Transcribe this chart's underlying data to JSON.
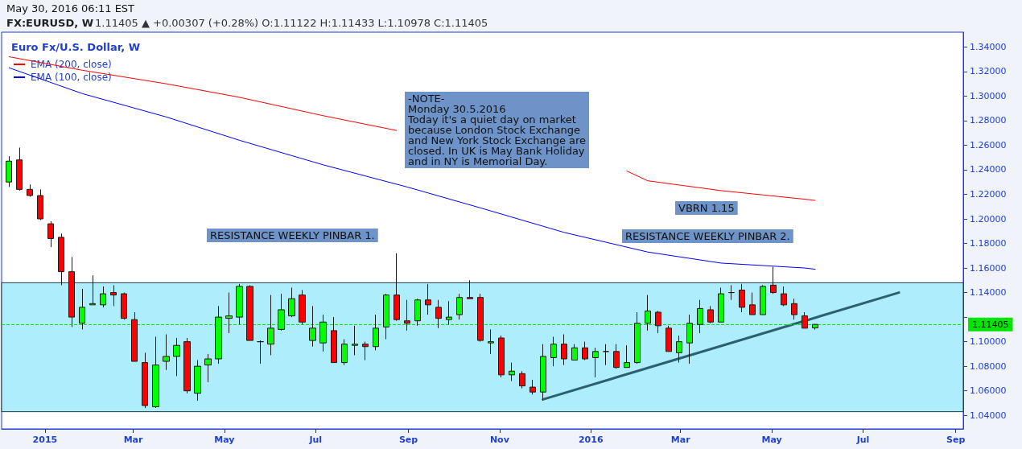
{
  "chart_data": {
    "type": "candlestick",
    "title": "FX:EURUSD, W",
    "subtitle": "1.11405 ▲ +0.00307 (+0.28%) O:1.11122 H:1.11433 L:1.10978 C:1.11405",
    "legend_title": "Euro Fx/U.S. Dollar, W",
    "annotations": [
      "May 30, 2016 06:11 EST",
      "-NOTE-\nMonday 30.5.2016\nToday it's a quiet day on market\nbecause London Stock Exchange\nand New York Stock Exchange are\nclosed. In UK is May Bank Holiday\nand in NY is Memorial Day.",
      "VBRN 1.15",
      "RESISTANCE WEEKLY PINBAR 1.",
      "RESISTANCE WEEKLY PINBAR 2."
    ],
    "x": [
      "2014-12-08",
      "2014-12-15",
      "2014-12-22",
      "2014-12-29",
      "2015-01-05",
      "2015-01-12",
      "2015-01-19",
      "2015-01-26",
      "2015-02-02",
      "2015-02-09",
      "2015-02-16",
      "2015-02-23",
      "2015-03-02",
      "2015-03-09",
      "2015-03-16",
      "2015-03-23",
      "2015-03-30",
      "2015-04-06",
      "2015-04-13",
      "2015-04-20",
      "2015-04-27",
      "2015-05-04",
      "2015-05-11",
      "2015-05-18",
      "2015-05-25",
      "2015-06-01",
      "2015-06-08",
      "2015-06-15",
      "2015-06-22",
      "2015-06-29",
      "2015-07-06",
      "2015-07-13",
      "2015-07-20",
      "2015-07-27",
      "2015-08-03",
      "2015-08-10",
      "2015-08-17",
      "2015-08-24",
      "2015-08-31",
      "2015-09-07",
      "2015-09-14",
      "2015-09-21",
      "2015-09-28",
      "2015-10-05",
      "2015-10-12",
      "2015-10-19",
      "2015-10-26",
      "2015-11-02",
      "2015-11-09",
      "2015-11-16",
      "2015-11-23",
      "2015-11-30",
      "2015-12-07",
      "2015-12-14",
      "2015-12-21",
      "2015-12-28",
      "2016-01-04",
      "2016-01-11",
      "2016-01-18",
      "2016-01-25",
      "2016-02-01",
      "2016-02-08",
      "2016-02-15",
      "2016-02-22",
      "2016-02-29",
      "2016-03-07",
      "2016-03-14",
      "2016-03-21",
      "2016-03-28",
      "2016-04-04",
      "2016-04-11",
      "2016-04-18",
      "2016-04-25",
      "2016-05-02",
      "2016-05-09",
      "2016-05-16",
      "2016-05-23",
      "2016-05-30"
    ],
    "ohlc": [
      [
        1.23,
        1.251,
        1.226,
        1.247
      ],
      [
        1.248,
        1.258,
        1.223,
        1.224
      ],
      [
        1.224,
        1.228,
        1.218,
        1.219
      ],
      [
        1.219,
        1.224,
        1.199,
        1.2
      ],
      [
        1.196,
        1.198,
        1.177,
        1.184
      ],
      [
        1.185,
        1.188,
        1.146,
        1.157
      ],
      [
        1.157,
        1.169,
        1.112,
        1.12
      ],
      [
        1.115,
        1.143,
        1.11,
        1.128
      ],
      [
        1.13,
        1.154,
        1.13,
        1.131
      ],
      [
        1.13,
        1.145,
        1.128,
        1.139
      ],
      [
        1.14,
        1.146,
        1.129,
        1.138
      ],
      [
        1.139,
        1.14,
        1.118,
        1.119
      ],
      [
        1.118,
        1.124,
        1.084,
        1.084
      ],
      [
        1.083,
        1.091,
        1.046,
        1.048
      ],
      [
        1.047,
        1.104,
        1.046,
        1.081
      ],
      [
        1.084,
        1.106,
        1.077,
        1.088
      ],
      [
        1.088,
        1.103,
        1.072,
        1.097
      ],
      [
        1.1,
        1.103,
        1.058,
        1.06
      ],
      [
        1.058,
        1.085,
        1.052,
        1.08
      ],
      [
        1.081,
        1.09,
        1.067,
        1.086
      ],
      [
        1.086,
        1.129,
        1.082,
        1.12
      ],
      [
        1.119,
        1.14,
        1.107,
        1.121
      ],
      [
        1.12,
        1.147,
        1.114,
        1.145
      ],
      [
        1.145,
        1.146,
        1.101,
        1.101
      ],
      [
        1.1,
        1.101,
        1.082,
        1.1
      ],
      [
        1.098,
        1.138,
        1.089,
        1.111
      ],
      [
        1.11,
        1.139,
        1.109,
        1.126
      ],
      [
        1.121,
        1.144,
        1.12,
        1.135
      ],
      [
        1.138,
        1.142,
        1.114,
        1.116
      ],
      [
        1.101,
        1.129,
        1.096,
        1.111
      ],
      [
        1.099,
        1.122,
        1.092,
        1.116
      ],
      [
        1.109,
        1.12,
        1.083,
        1.083
      ],
      [
        1.083,
        1.102,
        1.081,
        1.098
      ],
      [
        1.097,
        1.113,
        1.089,
        1.098
      ],
      [
        1.098,
        1.1,
        1.085,
        1.096
      ],
      [
        1.096,
        1.122,
        1.093,
        1.111
      ],
      [
        1.112,
        1.139,
        1.102,
        1.138
      ],
      [
        1.138,
        1.172,
        1.117,
        1.118
      ],
      [
        1.117,
        1.134,
        1.109,
        1.115
      ],
      [
        1.117,
        1.135,
        1.113,
        1.134
      ],
      [
        1.134,
        1.147,
        1.122,
        1.13
      ],
      [
        1.128,
        1.134,
        1.111,
        1.119
      ],
      [
        1.118,
        1.133,
        1.114,
        1.12
      ],
      [
        1.122,
        1.139,
        1.118,
        1.136
      ],
      [
        1.136,
        1.15,
        1.135,
        1.135
      ],
      [
        1.136,
        1.139,
        1.1,
        1.101
      ],
      [
        1.099,
        1.11,
        1.09,
        1.1
      ],
      [
        1.103,
        1.105,
        1.071,
        1.073
      ],
      [
        1.073,
        1.083,
        1.068,
        1.076
      ],
      [
        1.074,
        1.076,
        1.062,
        1.064
      ],
      [
        1.063,
        1.069,
        1.057,
        1.059
      ],
      [
        1.059,
        1.098,
        1.052,
        1.088
      ],
      [
        1.087,
        1.104,
        1.08,
        1.098
      ],
      [
        1.098,
        1.106,
        1.081,
        1.086
      ],
      [
        1.085,
        1.098,
        1.085,
        1.095
      ],
      [
        1.095,
        1.1,
        1.085,
        1.086
      ],
      [
        1.087,
        1.095,
        1.071,
        1.092
      ],
      [
        1.092,
        1.098,
        1.081,
        1.092
      ],
      [
        1.092,
        1.098,
        1.078,
        1.079
      ],
      [
        1.079,
        1.097,
        1.079,
        1.083
      ],
      [
        1.083,
        1.124,
        1.082,
        1.115
      ],
      [
        1.115,
        1.138,
        1.109,
        1.125
      ],
      [
        1.124,
        1.125,
        1.107,
        1.113
      ],
      [
        1.111,
        1.113,
        1.092,
        1.092
      ],
      [
        1.091,
        1.105,
        1.083,
        1.1
      ],
      [
        1.099,
        1.122,
        1.082,
        1.115
      ],
      [
        1.114,
        1.134,
        1.107,
        1.127
      ],
      [
        1.126,
        1.129,
        1.115,
        1.116
      ],
      [
        1.116,
        1.144,
        1.116,
        1.139
      ],
      [
        1.14,
        1.146,
        1.134,
        1.14
      ],
      [
        1.142,
        1.147,
        1.124,
        1.128
      ],
      [
        1.13,
        1.14,
        1.122,
        1.122
      ],
      [
        1.122,
        1.146,
        1.122,
        1.145
      ],
      [
        1.146,
        1.161,
        1.139,
        1.14
      ],
      [
        1.139,
        1.145,
        1.129,
        1.13
      ],
      [
        1.131,
        1.135,
        1.118,
        1.122
      ],
      [
        1.121,
        1.124,
        1.111,
        1.111
      ],
      [
        1.11122,
        1.11433,
        1.10978,
        1.11405
      ]
    ],
    "series": [
      {
        "name": "EMA (200, close)",
        "type": "line",
        "color": "#ff0000",
        "x": [
          "2014-12-08",
          "2015-01-26",
          "2015-03-23",
          "2015-05-11",
          "2015-07-06",
          "2015-08-24",
          "2015-08-31",
          "2015-10-19",
          "2015-12-14",
          "2016-01-25",
          "2016-02-08",
          "2016-03-28",
          "2016-05-23",
          "2016-05-30"
        ],
        "values": [
          1.332,
          1.321,
          1.31,
          1.299,
          1.284,
          1.272,
          null,
          null,
          null,
          1.239,
          1.231,
          1.223,
          1.216,
          1.215
        ]
      },
      {
        "name": "EMA (100, close)",
        "type": "line",
        "color": "#0000ff",
        "x": [
          "2014-12-08",
          "2015-01-26",
          "2015-03-23",
          "2015-05-11",
          "2015-07-06",
          "2015-08-31",
          "2015-10-19",
          "2015-12-14",
          "2016-02-08",
          "2016-03-28",
          "2016-05-23",
          "2016-05-30"
        ],
        "values": [
          1.323,
          1.302,
          1.283,
          1.264,
          1.244,
          1.226,
          1.209,
          1.189,
          1.173,
          1.164,
          1.16,
          1.159
        ]
      },
      {
        "type": "line",
        "color": "#2d5f6e",
        "x": [
          "2015-11-30",
          "2016-07-25"
        ],
        "values": [
          1.053,
          1.14
        ]
      }
    ],
    "xlim": [
      "2014-12-03",
      "2016-09-06"
    ],
    "xticks": [
      {
        "value": "2015-01-01",
        "label": "2015"
      },
      {
        "value": "2015-03-01",
        "label": "Mar"
      },
      {
        "value": "2015-05-01",
        "label": "May"
      },
      {
        "value": "2015-07-01",
        "label": "Jul"
      },
      {
        "value": "2015-09-01",
        "label": "Sep"
      },
      {
        "value": "2015-11-01",
        "label": "Nov"
      },
      {
        "value": "2016-01-01",
        "label": "2016"
      },
      {
        "value": "2016-03-01",
        "label": "Mar"
      },
      {
        "value": "2016-05-01",
        "label": "May"
      },
      {
        "value": "2016-07-01",
        "label": "Jul"
      },
      {
        "value": "2016-09-01",
        "label": "Sep"
      }
    ],
    "ylim": [
      1.029,
      1.352
    ],
    "yticks": [
      {
        "value": 1.04,
        "label": "1.04000"
      },
      {
        "value": 1.06,
        "label": "1.06000"
      },
      {
        "value": 1.08,
        "label": "1.08000"
      },
      {
        "value": 1.1,
        "label": "1.10000"
      },
      {
        "value": 1.12,
        "label": null
      },
      {
        "value": 1.14,
        "label": "1.14000"
      },
      {
        "value": 1.16,
        "label": "1.16000"
      },
      {
        "value": 1.18,
        "label": "1.18000"
      },
      {
        "value": 1.2,
        "label": "1.20000"
      },
      {
        "value": 1.22,
        "label": "1.22000"
      },
      {
        "value": 1.24,
        "label": "1.24000"
      },
      {
        "value": 1.26,
        "label": "1.26000"
      },
      {
        "value": 1.28,
        "label": "1.28000"
      },
      {
        "value": 1.3,
        "label": "1.30000"
      },
      {
        "value": 1.32,
        "label": "1.32000"
      },
      {
        "value": 1.34,
        "label": "1.34000"
      }
    ],
    "ref_lines": [
      {
        "axis": "y",
        "value": 1.11405,
        "label": "1.11405",
        "color": "#00e600",
        "line_style": "dashed"
      }
    ],
    "bands": [
      {
        "axis": "y",
        "from": 1.043,
        "to": 1.148,
        "color": "#aeeefc"
      }
    ],
    "legend": "top left",
    "grid": false
  }
}
